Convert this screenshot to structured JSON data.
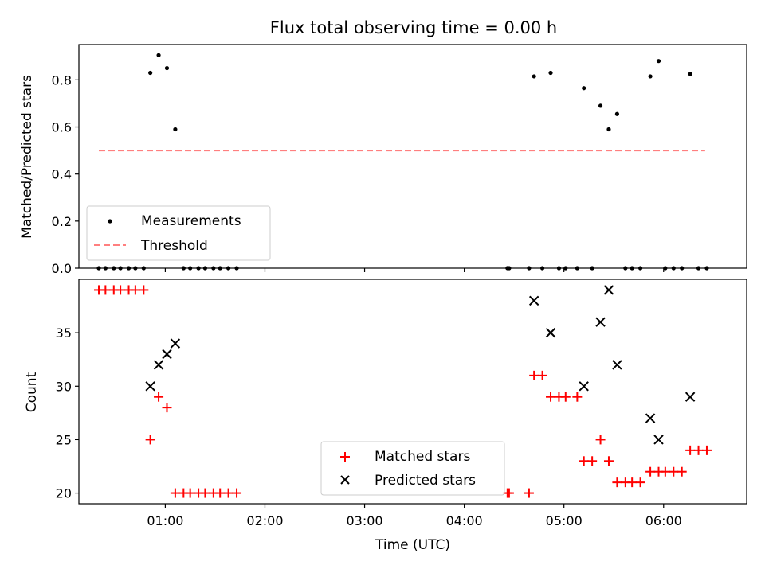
{
  "title": "Flux total observing time = 0.00 h",
  "colors": {
    "measurement": "#000000",
    "threshold": "#ff7f7f",
    "matched": "#ff0000",
    "predicted": "#000000",
    "legend_border": "#cccccc"
  },
  "chart_data": [
    {
      "type": "scatter",
      "panel": "top",
      "ylabel": "Matched/Predicted stars",
      "xlabel": "",
      "xlim": [
        "00:08",
        "06:50"
      ],
      "ylim": [
        0,
        0.95
      ],
      "yticks": [
        0.0,
        0.2,
        0.4,
        0.6,
        0.8
      ],
      "ytick_labels": [
        "0.0",
        "0.2",
        "0.4",
        "0.6",
        "0.8"
      ],
      "xticks": [
        "01:00",
        "02:00",
        "03:00",
        "04:00",
        "05:00",
        "06:00"
      ],
      "xtick_labels_shown": false,
      "grid": false,
      "legend_placement": "lower-left",
      "legend": [
        "Measurements",
        "Threshold"
      ],
      "threshold": {
        "name": "Threshold",
        "value": 0.5,
        "x_range": [
          "00:20",
          "06:25"
        ],
        "style": "dashed"
      },
      "series": [
        {
          "name": "Measurements",
          "marker": "dot",
          "points": [
            [
              "00:20",
              0
            ],
            [
              "00:24",
              0
            ],
            [
              "00:29",
              0
            ],
            [
              "00:33",
              0
            ],
            [
              "00:38",
              0
            ],
            [
              "00:42",
              0
            ],
            [
              "00:47",
              0
            ],
            [
              "00:51",
              0.83
            ],
            [
              "00:56",
              0.905
            ],
            [
              "01:01",
              0.85
            ],
            [
              "01:06",
              0.59
            ],
            [
              "01:11",
              0
            ],
            [
              "01:15",
              0
            ],
            [
              "01:20",
              0
            ],
            [
              "01:24",
              0
            ],
            [
              "01:29",
              0
            ],
            [
              "01:33",
              0
            ],
            [
              "01:38",
              0
            ],
            [
              "01:43",
              0
            ],
            [
              "04:26",
              0
            ],
            [
              "04:27",
              0
            ],
            [
              "04:39",
              0
            ],
            [
              "04:42",
              0.815
            ],
            [
              "04:47",
              0
            ],
            [
              "04:52",
              0.83
            ],
            [
              "04:57",
              0
            ],
            [
              "05:01",
              0
            ],
            [
              "05:08",
              0
            ],
            [
              "05:12",
              0.765
            ],
            [
              "05:17",
              0
            ],
            [
              "05:22",
              0.69
            ],
            [
              "05:27",
              0.59
            ],
            [
              "05:32",
              0.655
            ],
            [
              "05:37",
              0
            ],
            [
              "05:41",
              0
            ],
            [
              "05:46",
              0
            ],
            [
              "05:52",
              0.815
            ],
            [
              "05:57",
              0.88
            ],
            [
              "06:01",
              0
            ],
            [
              "06:06",
              0
            ],
            [
              "06:11",
              0
            ],
            [
              "06:16",
              0.825
            ],
            [
              "06:21",
              0
            ],
            [
              "06:26",
              0
            ]
          ]
        }
      ]
    },
    {
      "type": "scatter",
      "panel": "bottom",
      "ylabel": "Count",
      "xlabel": "Time (UTC)",
      "xlim": [
        "00:08",
        "06:50"
      ],
      "ylim": [
        19,
        40
      ],
      "yticks": [
        20,
        25,
        30,
        35
      ],
      "ytick_labels": [
        "20",
        "25",
        "30",
        "35"
      ],
      "xticks": [
        "01:00",
        "02:00",
        "03:00",
        "04:00",
        "05:00",
        "06:00"
      ],
      "xtick_labels": [
        "01:00",
        "02:00",
        "03:00",
        "04:00",
        "05:00",
        "06:00"
      ],
      "grid": false,
      "legend_placement": "lower-center",
      "legend": [
        "Matched stars",
        "Predicted stars"
      ],
      "series": [
        {
          "name": "Matched stars",
          "marker": "plus",
          "points": [
            [
              "00:20",
              39
            ],
            [
              "00:24",
              39
            ],
            [
              "00:29",
              39
            ],
            [
              "00:33",
              39
            ],
            [
              "00:38",
              39
            ],
            [
              "00:42",
              39
            ],
            [
              "00:47",
              39
            ],
            [
              "00:51",
              25
            ],
            [
              "00:56",
              29
            ],
            [
              "01:01",
              28
            ],
            [
              "01:06",
              20
            ],
            [
              "01:11",
              20
            ],
            [
              "01:15",
              20
            ],
            [
              "01:20",
              20
            ],
            [
              "01:24",
              20
            ],
            [
              "01:29",
              20
            ],
            [
              "01:33",
              20
            ],
            [
              "01:38",
              20
            ],
            [
              "01:43",
              20
            ],
            [
              "04:26",
              20
            ],
            [
              "04:27",
              20
            ],
            [
              "04:39",
              20
            ],
            [
              "04:42",
              31
            ],
            [
              "04:47",
              31
            ],
            [
              "04:52",
              29
            ],
            [
              "04:57",
              29
            ],
            [
              "05:01",
              29
            ],
            [
              "05:08",
              29
            ],
            [
              "05:12",
              23
            ],
            [
              "05:17",
              23
            ],
            [
              "05:22",
              25
            ],
            [
              "05:27",
              23
            ],
            [
              "05:32",
              21
            ],
            [
              "05:37",
              21
            ],
            [
              "05:41",
              21
            ],
            [
              "05:46",
              21
            ],
            [
              "05:52",
              22
            ],
            [
              "05:57",
              22
            ],
            [
              "06:01",
              22
            ],
            [
              "06:06",
              22
            ],
            [
              "06:11",
              22
            ],
            [
              "06:16",
              24
            ],
            [
              "06:21",
              24
            ],
            [
              "06:26",
              24
            ]
          ]
        },
        {
          "name": "Predicted stars",
          "marker": "x",
          "points": [
            [
              "00:51",
              30
            ],
            [
              "00:56",
              32
            ],
            [
              "01:01",
              33
            ],
            [
              "01:06",
              34
            ],
            [
              "04:42",
              38
            ],
            [
              "04:52",
              35
            ],
            [
              "05:12",
              30
            ],
            [
              "05:22",
              36
            ],
            [
              "05:27",
              39
            ],
            [
              "05:32",
              32
            ],
            [
              "05:52",
              27
            ],
            [
              "05:57",
              25
            ],
            [
              "06:16",
              29
            ]
          ]
        }
      ]
    }
  ]
}
